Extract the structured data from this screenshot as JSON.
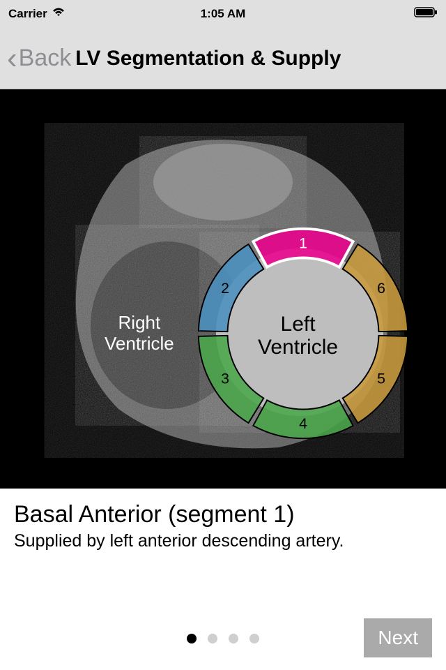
{
  "statusBar": {
    "carrier": "Carrier",
    "time": "1:05 AM"
  },
  "navBar": {
    "backLabel": "Back",
    "title": "LV Segmentation & Supply"
  },
  "diagram": {
    "rvLabel": "Right\nVentricle",
    "lvLabel": "Left\nVentricle",
    "segments": [
      {
        "num": "1",
        "color": "#ec008c",
        "stroke": "#ffffff"
      },
      {
        "num": "2",
        "color": "#4a8fbf",
        "stroke": "#000000"
      },
      {
        "num": "3",
        "color": "#4aa64a",
        "stroke": "#000000"
      },
      {
        "num": "4",
        "color": "#4aa64a",
        "stroke": "#000000"
      },
      {
        "num": "5",
        "color": "#c89b3c",
        "stroke": "#000000"
      },
      {
        "num": "6",
        "color": "#c89b3c",
        "stroke": "#000000"
      }
    ],
    "heartFill": "#9a9a9a",
    "lvCircleFill": "#bfbfbf"
  },
  "content": {
    "title": "Basal Anterior (segment 1)",
    "subtitle": "Supplied by left anterior descending artery."
  },
  "pagination": {
    "total": 4,
    "active": 0
  },
  "nextButton": {
    "label": "Next"
  },
  "colors": {
    "statusBg": "#e0e0e0",
    "imageBg": "#000000",
    "nextBg": "#aaaaaa"
  }
}
